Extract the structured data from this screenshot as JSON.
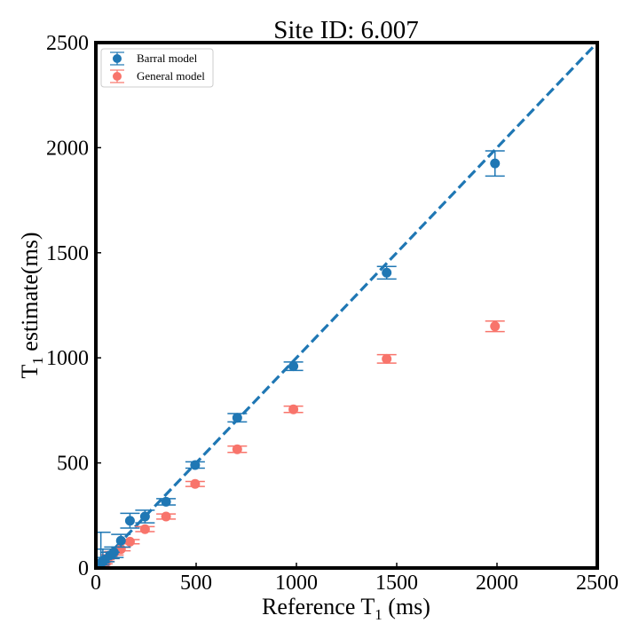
{
  "chart_data": {
    "type": "scatter",
    "title": "Site ID: 6.007",
    "xlabel": {
      "pre": "Reference T",
      "sub": "1",
      "post": " (ms)"
    },
    "ylabel": {
      "pre": "T",
      "sub": "1",
      "post": " estimate(ms)"
    },
    "xlim": [
      0,
      2500
    ],
    "ylim": [
      0,
      2500
    ],
    "xticks": [
      "0",
      "500",
      "1000",
      "1500",
      "2000",
      "2500"
    ],
    "yticks": [
      "0",
      "500",
      "1000",
      "1500",
      "2000",
      "2500"
    ],
    "grid": false,
    "legend_position": "top-left",
    "identity_line": {
      "style": "dashed",
      "color": "#1f77b4",
      "from": [
        0,
        0
      ],
      "to": [
        2500,
        2500
      ]
    },
    "series": [
      {
        "name": "Barral model",
        "color": "#1f77b4",
        "x": [
          20,
          25,
          35,
          45,
          70,
          90,
          125,
          170,
          245,
          350,
          495,
          705,
          985,
          1450,
          1990
        ],
        "y": [
          20,
          25,
          30,
          40,
          60,
          75,
          130,
          225,
          245,
          315,
          490,
          715,
          960,
          1405,
          1925
        ],
        "err": [
          5,
          145,
          60,
          10,
          15,
          25,
          30,
          35,
          30,
          15,
          15,
          20,
          20,
          30,
          60
        ]
      },
      {
        "name": "General model",
        "color": "#f8746b",
        "x": [
          20,
          25,
          35,
          45,
          70,
          90,
          125,
          170,
          245,
          350,
          495,
          705,
          985,
          1450,
          1990
        ],
        "y": [
          15,
          20,
          25,
          35,
          55,
          70,
          90,
          125,
          185,
          245,
          400,
          565,
          755,
          995,
          1150
        ],
        "err": [
          5,
          5,
          5,
          5,
          8,
          8,
          8,
          10,
          12,
          12,
          12,
          15,
          15,
          20,
          25
        ]
      }
    ]
  }
}
